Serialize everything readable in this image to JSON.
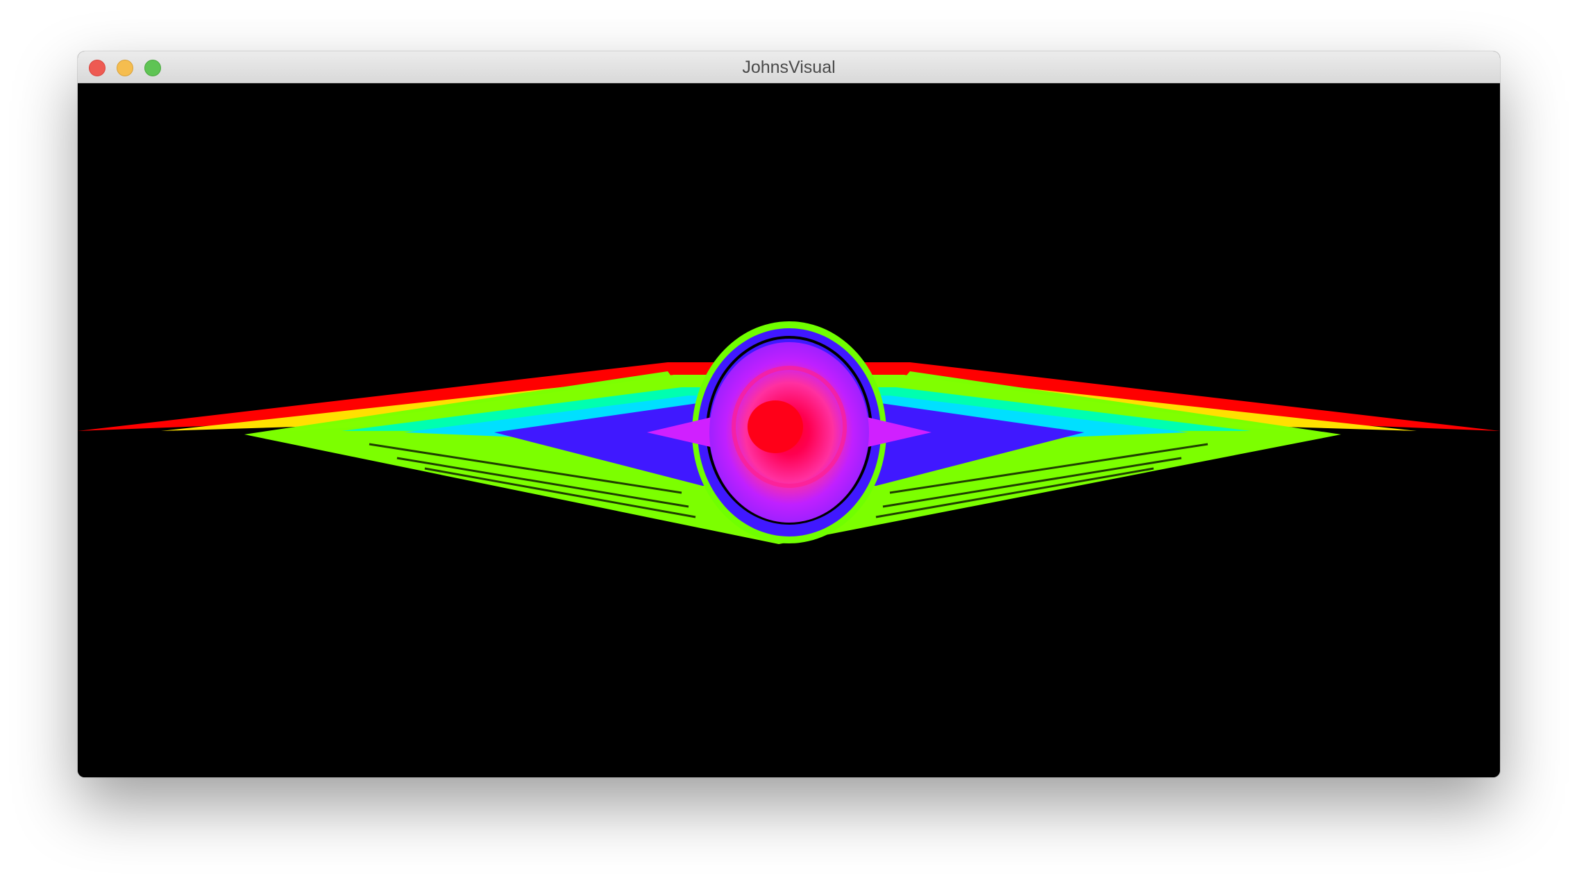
{
  "window": {
    "title": "JohnsVisual"
  },
  "controls": {
    "close_icon": "close-icon",
    "minimize_icon": "minimize-icon",
    "zoom_icon": "zoom-icon"
  },
  "colors": {
    "background": "#000000",
    "close": "#ee5a52",
    "minimize": "#f5bd4f",
    "zoom": "#5fc454",
    "palette": [
      "#ff0000",
      "#ffff00",
      "#80ff00",
      "#00ff80",
      "#00ffff",
      "#4020ff",
      "#c020ff",
      "#ff0080"
    ]
  }
}
